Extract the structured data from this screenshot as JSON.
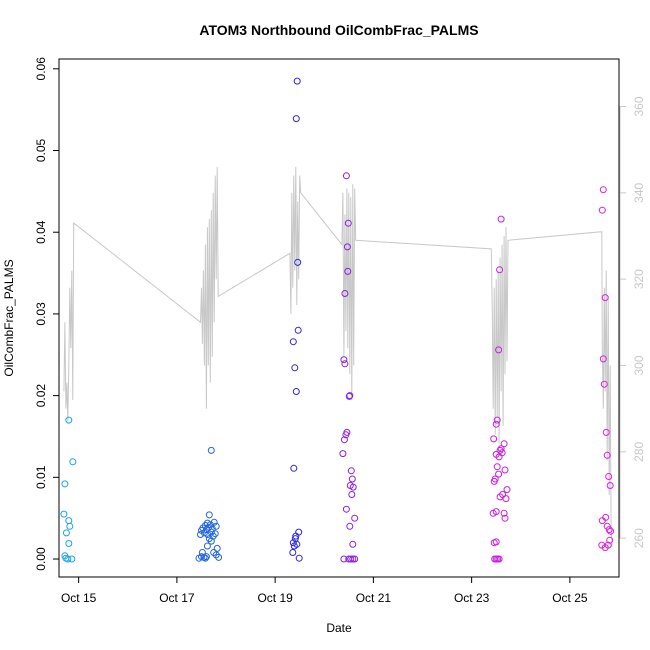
{
  "chart_data": {
    "type": "scatter",
    "title": "ATOM3 Northbound OilCombFrac_PALMS",
    "xlabel": "Date",
    "ylabel": "OilCombFrac_PALMS",
    "xlim": [
      14.6,
      26.0
    ],
    "ylim": [
      -0.0022,
      0.0612
    ],
    "y_ticks": [
      0.0,
      0.01,
      0.02,
      0.03,
      0.04,
      0.05,
      0.06
    ],
    "y_tick_labels": [
      "0.00",
      "0.01",
      "0.02",
      "0.03",
      "0.04",
      "0.05",
      "0.06"
    ],
    "x_ticks": [
      15,
      17,
      19,
      21,
      23,
      25
    ],
    "x_tick_labels": [
      "Oct 15",
      "Oct 17",
      "Oct 19",
      "Oct 21",
      "Oct 23",
      "Oct 25"
    ],
    "y2_ticks": [
      260,
      280,
      300,
      320,
      340,
      360
    ],
    "y2_lim": [
      251.0,
      371.0
    ],
    "grid": false,
    "points": [
      {
        "x": 14.72,
        "y": 0.0092,
        "color": "#1ba3e8"
      },
      {
        "x": 14.7,
        "y": 0.0055,
        "color": "#1ba3e8"
      },
      {
        "x": 14.75,
        "y": 0.0032,
        "color": "#1ba3e8"
      },
      {
        "x": 14.72,
        "y": 0.0004,
        "color": "#1ba3e8"
      },
      {
        "x": 14.74,
        "y": 0.0001,
        "color": "#1ba3e8"
      },
      {
        "x": 14.78,
        "y": 0.0,
        "color": "#1ba3e8"
      },
      {
        "x": 14.8,
        "y": 0.0019,
        "color": "#1ba3e8"
      },
      {
        "x": 14.8,
        "y": 0.0047,
        "color": "#1ba3e8"
      },
      {
        "x": 14.82,
        "y": 0.004,
        "color": "#1ba3e8"
      },
      {
        "x": 14.86,
        "y": 0.0,
        "color": "#1ba3e8"
      },
      {
        "x": 14.8,
        "y": 0.017,
        "color": "#1ba3e8"
      },
      {
        "x": 14.88,
        "y": 0.0119,
        "color": "#1ba3e8"
      },
      {
        "x": 17.45,
        "y": 0.0001,
        "color": "#2266e0"
      },
      {
        "x": 17.5,
        "y": 0.0003,
        "color": "#2266e0"
      },
      {
        "x": 17.52,
        "y": 0.0008,
        "color": "#2266e0"
      },
      {
        "x": 17.55,
        "y": 0.0002,
        "color": "#2266e0"
      },
      {
        "x": 17.58,
        "y": 0.0001,
        "color": "#2266e0"
      },
      {
        "x": 17.6,
        "y": 0.0003,
        "color": "#2266e0"
      },
      {
        "x": 17.48,
        "y": 0.003,
        "color": "#2266e0"
      },
      {
        "x": 17.5,
        "y": 0.0035,
        "color": "#2266e0"
      },
      {
        "x": 17.53,
        "y": 0.0038,
        "color": "#2266e0"
      },
      {
        "x": 17.56,
        "y": 0.0032,
        "color": "#2266e0"
      },
      {
        "x": 17.58,
        "y": 0.0041,
        "color": "#2266e0"
      },
      {
        "x": 17.6,
        "y": 0.0036,
        "color": "#2266e0"
      },
      {
        "x": 17.62,
        "y": 0.0044,
        "color": "#2266e0"
      },
      {
        "x": 17.63,
        "y": 0.003,
        "color": "#2266e0"
      },
      {
        "x": 17.65,
        "y": 0.0039,
        "color": "#2266e0"
      },
      {
        "x": 17.66,
        "y": 0.0025,
        "color": "#2266e0"
      },
      {
        "x": 17.68,
        "y": 0.0042,
        "color": "#2266e0"
      },
      {
        "x": 17.7,
        "y": 0.0033,
        "color": "#2266e0"
      },
      {
        "x": 17.72,
        "y": 0.0037,
        "color": "#2266e0"
      },
      {
        "x": 17.74,
        "y": 0.0028,
        "color": "#2266e0"
      },
      {
        "x": 17.76,
        "y": 0.0045,
        "color": "#2266e0"
      },
      {
        "x": 17.78,
        "y": 0.0031,
        "color": "#2266e0"
      },
      {
        "x": 17.8,
        "y": 0.004,
        "color": "#2266e0"
      },
      {
        "x": 17.62,
        "y": 0.0016,
        "color": "#2266e0"
      },
      {
        "x": 17.7,
        "y": 0.0022,
        "color": "#2266e0"
      },
      {
        "x": 17.75,
        "y": 0.0008,
        "color": "#2266e0"
      },
      {
        "x": 17.8,
        "y": 0.0005,
        "color": "#2266e0"
      },
      {
        "x": 17.82,
        "y": 0.0013,
        "color": "#2266e0"
      },
      {
        "x": 17.85,
        "y": 0.0002,
        "color": "#2266e0"
      },
      {
        "x": 17.66,
        "y": 0.0054,
        "color": "#2266e0"
      },
      {
        "x": 17.7,
        "y": 0.0133,
        "color": "#2266e0"
      },
      {
        "x": 19.45,
        "y": 0.0585,
        "color": "#2c27e0"
      },
      {
        "x": 19.43,
        "y": 0.0539,
        "color": "#2c27e0"
      },
      {
        "x": 19.46,
        "y": 0.0363,
        "color": "#2c27e0"
      },
      {
        "x": 19.47,
        "y": 0.028,
        "color": "#2c27e0"
      },
      {
        "x": 19.37,
        "y": 0.0266,
        "color": "#2c27e0"
      },
      {
        "x": 19.4,
        "y": 0.0234,
        "color": "#2c27e0"
      },
      {
        "x": 19.43,
        "y": 0.0205,
        "color": "#2c27e0"
      },
      {
        "x": 19.38,
        "y": 0.0111,
        "color": "#2c27e0"
      },
      {
        "x": 19.37,
        "y": 0.002,
        "color": "#2c27e0"
      },
      {
        "x": 19.39,
        "y": 0.0016,
        "color": "#2c27e0"
      },
      {
        "x": 19.41,
        "y": 0.0025,
        "color": "#2c27e0"
      },
      {
        "x": 19.36,
        "y": 0.0008,
        "color": "#2c27e0"
      },
      {
        "x": 19.42,
        "y": 0.0028,
        "color": "#2c27e0"
      },
      {
        "x": 19.44,
        "y": 0.0018,
        "color": "#2c27e0"
      },
      {
        "x": 19.48,
        "y": 0.0033,
        "color": "#2c27e0"
      },
      {
        "x": 19.49,
        "y": 0.0001,
        "color": "#2c27e0"
      },
      {
        "x": 20.45,
        "y": 0.0469,
        "color": "#8a1fe6"
      },
      {
        "x": 20.49,
        "y": 0.0411,
        "color": "#8a1fe6"
      },
      {
        "x": 20.47,
        "y": 0.0382,
        "color": "#8a1fe6"
      },
      {
        "x": 20.48,
        "y": 0.0352,
        "color": "#8a1fe6"
      },
      {
        "x": 20.42,
        "y": 0.0325,
        "color": "#8a1fe6"
      },
      {
        "x": 20.4,
        "y": 0.0244,
        "color": "#8a1fe6"
      },
      {
        "x": 20.42,
        "y": 0.0239,
        "color": "#8a1fe6"
      },
      {
        "x": 20.52,
        "y": 0.02,
        "color": "#8a1fe6"
      },
      {
        "x": 20.51,
        "y": 0.0199,
        "color": "#8a1fe6"
      },
      {
        "x": 20.46,
        "y": 0.0155,
        "color": "#8a1fe6"
      },
      {
        "x": 20.44,
        "y": 0.0152,
        "color": "#8a1fe6"
      },
      {
        "x": 20.41,
        "y": 0.0146,
        "color": "#8a1fe6"
      },
      {
        "x": 20.38,
        "y": 0.0129,
        "color": "#8a1fe6"
      },
      {
        "x": 20.55,
        "y": 0.0108,
        "color": "#8a1fe6"
      },
      {
        "x": 20.57,
        "y": 0.0098,
        "color": "#8a1fe6"
      },
      {
        "x": 20.53,
        "y": 0.009,
        "color": "#8a1fe6"
      },
      {
        "x": 20.59,
        "y": 0.0088,
        "color": "#8a1fe6"
      },
      {
        "x": 20.56,
        "y": 0.0079,
        "color": "#8a1fe6"
      },
      {
        "x": 20.45,
        "y": 0.0061,
        "color": "#8a1fe6"
      },
      {
        "x": 20.62,
        "y": 0.005,
        "color": "#8a1fe6"
      },
      {
        "x": 20.52,
        "y": 0.004,
        "color": "#8a1fe6"
      },
      {
        "x": 20.58,
        "y": 0.0018,
        "color": "#8a1fe6"
      },
      {
        "x": 20.4,
        "y": 0.0,
        "color": "#8a1fe6"
      },
      {
        "x": 20.5,
        "y": 0.0,
        "color": "#8a1fe6"
      },
      {
        "x": 20.54,
        "y": 0.0,
        "color": "#8a1fe6"
      },
      {
        "x": 20.58,
        "y": 0.0,
        "color": "#8a1fe6"
      },
      {
        "x": 20.62,
        "y": 0.0,
        "color": "#8a1fe6"
      },
      {
        "x": 23.6,
        "y": 0.0416,
        "color": "#c81ee0"
      },
      {
        "x": 23.57,
        "y": 0.0354,
        "color": "#c81ee0"
      },
      {
        "x": 23.55,
        "y": 0.0256,
        "color": "#c81ee0"
      },
      {
        "x": 23.52,
        "y": 0.017,
        "color": "#c81ee0"
      },
      {
        "x": 23.5,
        "y": 0.0165,
        "color": "#c81ee0"
      },
      {
        "x": 23.45,
        "y": 0.0147,
        "color": "#c81ee0"
      },
      {
        "x": 23.66,
        "y": 0.0141,
        "color": "#c81ee0"
      },
      {
        "x": 23.6,
        "y": 0.0135,
        "color": "#c81ee0"
      },
      {
        "x": 23.58,
        "y": 0.0133,
        "color": "#c81ee0"
      },
      {
        "x": 23.62,
        "y": 0.013,
        "color": "#c81ee0"
      },
      {
        "x": 23.5,
        "y": 0.0128,
        "color": "#c81ee0"
      },
      {
        "x": 23.56,
        "y": 0.0125,
        "color": "#c81ee0"
      },
      {
        "x": 23.52,
        "y": 0.0113,
        "color": "#c81ee0"
      },
      {
        "x": 23.68,
        "y": 0.0109,
        "color": "#c81ee0"
      },
      {
        "x": 23.55,
        "y": 0.0104,
        "color": "#c81ee0"
      },
      {
        "x": 23.48,
        "y": 0.0098,
        "color": "#c81ee0"
      },
      {
        "x": 23.46,
        "y": 0.0095,
        "color": "#c81ee0"
      },
      {
        "x": 23.72,
        "y": 0.0085,
        "color": "#c81ee0"
      },
      {
        "x": 23.63,
        "y": 0.0079,
        "color": "#c81ee0"
      },
      {
        "x": 23.58,
        "y": 0.0076,
        "color": "#c81ee0"
      },
      {
        "x": 23.7,
        "y": 0.0074,
        "color": "#c81ee0"
      },
      {
        "x": 23.5,
        "y": 0.0058,
        "color": "#c81ee0"
      },
      {
        "x": 23.44,
        "y": 0.0056,
        "color": "#c81ee0"
      },
      {
        "x": 23.66,
        "y": 0.0056,
        "color": "#c81ee0"
      },
      {
        "x": 23.68,
        "y": 0.005,
        "color": "#c81ee0"
      },
      {
        "x": 23.46,
        "y": 0.002,
        "color": "#c81ee0"
      },
      {
        "x": 23.5,
        "y": 0.0021,
        "color": "#c81ee0"
      },
      {
        "x": 23.47,
        "y": 0.0,
        "color": "#c81ee0"
      },
      {
        "x": 23.5,
        "y": 0.0,
        "color": "#c81ee0"
      },
      {
        "x": 23.53,
        "y": 0.0,
        "color": "#c81ee0"
      },
      {
        "x": 23.56,
        "y": 0.0,
        "color": "#c81ee0"
      },
      {
        "x": 25.68,
        "y": 0.0452,
        "color": "#e11ee0"
      },
      {
        "x": 25.66,
        "y": 0.0427,
        "color": "#e11ee0"
      },
      {
        "x": 25.72,
        "y": 0.032,
        "color": "#e11ee0"
      },
      {
        "x": 25.68,
        "y": 0.0245,
        "color": "#e11ee0"
      },
      {
        "x": 25.7,
        "y": 0.0214,
        "color": "#e11ee0"
      },
      {
        "x": 25.74,
        "y": 0.0155,
        "color": "#e11ee0"
      },
      {
        "x": 25.76,
        "y": 0.0127,
        "color": "#e11ee0"
      },
      {
        "x": 25.79,
        "y": 0.0101,
        "color": "#e11ee0"
      },
      {
        "x": 25.82,
        "y": 0.009,
        "color": "#e11ee0"
      },
      {
        "x": 25.66,
        "y": 0.0047,
        "color": "#e11ee0"
      },
      {
        "x": 25.73,
        "y": 0.0051,
        "color": "#e11ee0"
      },
      {
        "x": 25.76,
        "y": 0.004,
        "color": "#e11ee0"
      },
      {
        "x": 25.8,
        "y": 0.0036,
        "color": "#e11ee0"
      },
      {
        "x": 25.83,
        "y": 0.0034,
        "color": "#e11ee0"
      },
      {
        "x": 25.65,
        "y": 0.0017,
        "color": "#e11ee0"
      },
      {
        "x": 25.72,
        "y": 0.0014,
        "color": "#e11ee0"
      },
      {
        "x": 25.78,
        "y": 0.0017,
        "color": "#e11ee0"
      },
      {
        "x": 25.81,
        "y": 0.0023,
        "color": "#e11ee0"
      }
    ],
    "secondary_line": {
      "color": "#c8c8c8",
      "points": [
        [
          14.7,
          294
        ],
        [
          14.72,
          310
        ],
        [
          14.74,
          290
        ],
        [
          14.76,
          296
        ],
        [
          14.78,
          287
        ],
        [
          14.8,
          300
        ],
        [
          14.82,
          318
        ],
        [
          14.84,
          304
        ],
        [
          14.86,
          322
        ],
        [
          14.88,
          292
        ],
        [
          14.9,
          333
        ],
        [
          17.48,
          310
        ],
        [
          17.5,
          318
        ],
        [
          17.52,
          305
        ],
        [
          17.54,
          322
        ],
        [
          17.56,
          300
        ],
        [
          17.58,
          328
        ],
        [
          17.6,
          290
        ],
        [
          17.62,
          332
        ],
        [
          17.64,
          300
        ],
        [
          17.66,
          334
        ],
        [
          17.68,
          296
        ],
        [
          17.7,
          336
        ],
        [
          17.72,
          302
        ],
        [
          17.74,
          340
        ],
        [
          17.76,
          310
        ],
        [
          17.78,
          344
        ],
        [
          17.8,
          320
        ],
        [
          17.82,
          346
        ],
        [
          17.84,
          316
        ],
        [
          19.3,
          326
        ],
        [
          19.32,
          312
        ],
        [
          19.34,
          340
        ],
        [
          19.36,
          318
        ],
        [
          19.38,
          344
        ],
        [
          19.4,
          322
        ],
        [
          19.42,
          346
        ],
        [
          19.44,
          314
        ],
        [
          19.46,
          338
        ],
        [
          19.48,
          320
        ],
        [
          19.5,
          344
        ],
        [
          19.52,
          340
        ],
        [
          20.36,
          328
        ],
        [
          20.38,
          340
        ],
        [
          20.4,
          302
        ],
        [
          20.42,
          335
        ],
        [
          20.44,
          308
        ],
        [
          20.46,
          341
        ],
        [
          20.48,
          304
        ],
        [
          20.5,
          340
        ],
        [
          20.52,
          298
        ],
        [
          20.54,
          339
        ],
        [
          20.56,
          292
        ],
        [
          20.58,
          342
        ],
        [
          20.6,
          300
        ],
        [
          20.62,
          341
        ],
        [
          20.64,
          329
        ],
        [
          23.4,
          327
        ],
        [
          23.42,
          312
        ],
        [
          23.44,
          290
        ],
        [
          23.46,
          318
        ],
        [
          23.48,
          284
        ],
        [
          23.5,
          320
        ],
        [
          23.52,
          288
        ],
        [
          23.54,
          322
        ],
        [
          23.56,
          282
        ],
        [
          23.58,
          325
        ],
        [
          23.6,
          294
        ],
        [
          23.62,
          328
        ],
        [
          23.64,
          286
        ],
        [
          23.66,
          330
        ],
        [
          23.68,
          298
        ],
        [
          23.7,
          332
        ],
        [
          23.72,
          301
        ],
        [
          23.74,
          329
        ],
        [
          25.65,
          331
        ],
        [
          25.66,
          304
        ],
        [
          25.68,
          290
        ],
        [
          25.7,
          318
        ],
        [
          25.72,
          294
        ],
        [
          25.74,
          322
        ],
        [
          25.76,
          278
        ],
        [
          25.78,
          316
        ],
        [
          25.8,
          270
        ],
        [
          25.82,
          300
        ],
        [
          25.84,
          262
        ],
        [
          25.86,
          258
        ]
      ]
    }
  }
}
